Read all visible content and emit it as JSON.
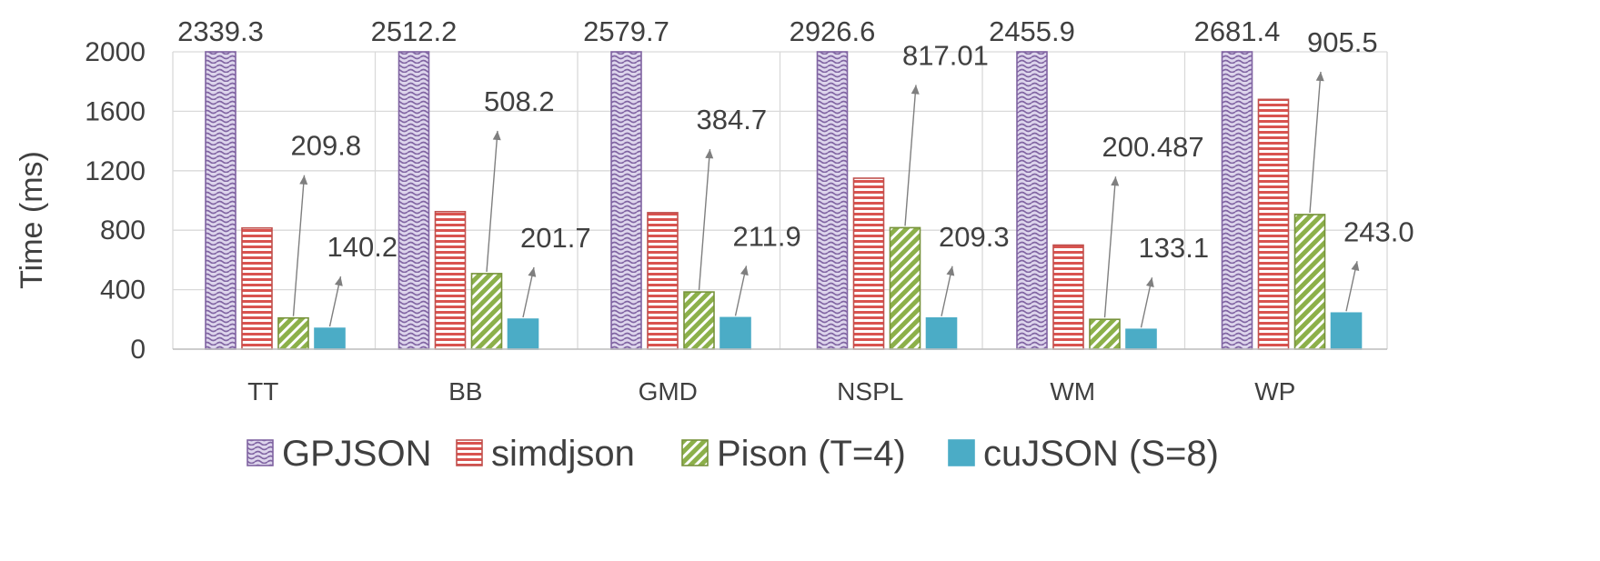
{
  "chart_data": {
    "type": "bar",
    "title": "",
    "xlabel": "",
    "ylabel": "Time (ms)",
    "ylim": [
      0,
      2000
    ],
    "yticks": [
      0,
      400,
      800,
      1200,
      1600,
      2000
    ],
    "grid": true,
    "legend_position": "bottom",
    "categories": [
      "TT",
      "BB",
      "GMD",
      "NSPL",
      "WM",
      "WP"
    ],
    "series": [
      {
        "name": "GPJSON",
        "values": [
          2339.3,
          2512.2,
          2579.7,
          2926.6,
          2455.9,
          2681.4
        ],
        "labels": [
          "2339.3",
          "2512.2",
          "2579.7",
          "2926.6",
          "2455.9",
          "2681.4"
        ],
        "color": "#b4a7d6",
        "stroke": "#8064a2",
        "pattern": "wave"
      },
      {
        "name": "simdjson",
        "values": [
          815,
          925,
          918,
          1150,
          700,
          1680
        ],
        "labels": [],
        "color": "#ffffff",
        "stroke": "#c0504d",
        "pattern": "horizontal-lines"
      },
      {
        "name": "Pison (T=4)",
        "values": [
          209.8,
          508.2,
          384.7,
          817.01,
          200.487,
          905.5
        ],
        "labels": [
          "209.8",
          "508.2",
          "384.7",
          "817.01",
          "200.487",
          "905.5"
        ],
        "color": "#9bbb59",
        "stroke": "#77933c",
        "pattern": "diagonal"
      },
      {
        "name": "cuJSON (S=8)",
        "values": [
          140.2,
          201.7,
          211.9,
          209.3,
          133.1,
          243.0
        ],
        "labels": [
          "140.2",
          "201.7",
          "211.9",
          "209.3",
          "133.1",
          "243.0"
        ],
        "color": "#4bacc6",
        "stroke": "#4bacc6",
        "pattern": "solid"
      }
    ]
  }
}
